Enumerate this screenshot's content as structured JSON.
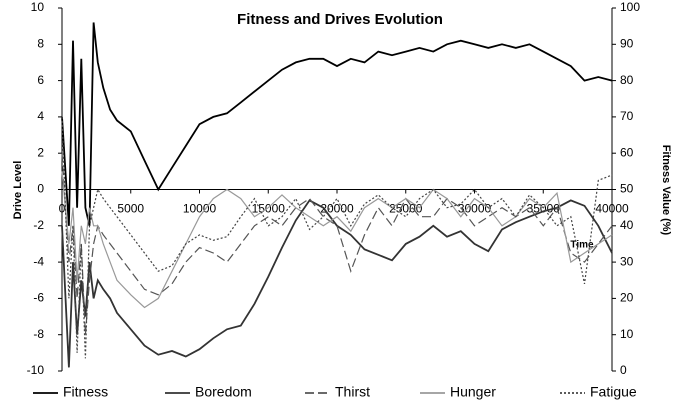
{
  "chart_data": {
    "type": "line",
    "title": "Fitness and Drives Evolution",
    "y_label": "Drive Level",
    "y2_label": "Fitness Value (%)",
    "annotation": "Time",
    "x": [
      0,
      500,
      800,
      1100,
      1400,
      1700,
      2000,
      2300,
      2600,
      3000,
      3500,
      4000,
      5000,
      6000,
      7000,
      8000,
      9000,
      10000,
      11000,
      12000,
      13000,
      14000,
      15000,
      16000,
      17000,
      18000,
      19000,
      20000,
      21000,
      22000,
      23000,
      24000,
      25000,
      26000,
      27000,
      28000,
      29000,
      30000,
      31000,
      32000,
      33000,
      34000,
      35000,
      36000,
      37000,
      38000,
      39000,
      40000
    ],
    "xlim": [
      0,
      40000
    ],
    "xticks": [
      0,
      5000,
      10000,
      15000,
      20000,
      25000,
      30000,
      35000,
      40000
    ],
    "ylim": [
      -10,
      10
    ],
    "yticks": [
      -10,
      -8,
      -6,
      -4,
      -2,
      0,
      2,
      4,
      6,
      8,
      10
    ],
    "y2lim": [
      0,
      100
    ],
    "y2ticks": [
      0,
      10,
      20,
      30,
      40,
      50,
      60,
      70,
      80,
      90,
      100
    ],
    "series": [
      {
        "name": "Fitness",
        "color": "#000000",
        "style": "solid",
        "axis": "y2",
        "values": [
          70,
          40,
          91,
          45,
          86,
          45,
          40,
          96,
          85,
          78,
          72,
          69,
          66,
          58,
          50,
          56,
          62,
          68,
          70,
          71,
          74,
          77,
          80,
          83,
          85,
          86,
          86,
          84,
          86,
          85,
          88,
          87,
          88,
          89,
          88,
          90,
          91,
          90,
          89,
          90,
          89,
          90,
          88,
          86,
          84,
          80,
          81,
          80
        ]
      },
      {
        "name": "Boredom",
        "color": "#333333",
        "style": "solid",
        "values": [
          -2,
          -9.8,
          -4,
          -8,
          -5,
          -7,
          -4,
          -6,
          -5,
          -5.5,
          -6,
          -6.8,
          -7.7,
          -8.6,
          -9.1,
          -8.9,
          -9.2,
          -8.8,
          -8.2,
          -7.7,
          -7.5,
          -6.3,
          -4.8,
          -3.2,
          -1.7,
          -0.6,
          -1,
          -2,
          -2.5,
          -3.3,
          -3.6,
          -3.9,
          -3,
          -2.6,
          -2,
          -2.6,
          -2.3,
          -3,
          -3.4,
          -2.2,
          -1.8,
          -1.5,
          -1.2,
          -1,
          -0.6,
          -0.9,
          -2,
          -3.5
        ]
      },
      {
        "name": "Thirst",
        "color": "#555555",
        "style": "dashed",
        "values": [
          2,
          -4,
          -2,
          -6,
          -3,
          -8,
          -5,
          -3,
          -2,
          -2.5,
          -3,
          -3.5,
          -4.5,
          -5.5,
          -5.8,
          -5.2,
          -4,
          -3.2,
          -3.5,
          -4,
          -3,
          -2,
          -1.5,
          -2,
          -1,
          -0.5,
          -1.5,
          -2,
          -4.5,
          -2.5,
          -1,
          -2,
          -0.5,
          -1.5,
          -1.5,
          -0.5,
          -1,
          -2,
          -1.5,
          -1,
          -1.5,
          -1,
          -2,
          -1,
          -3.5,
          -4,
          -3,
          -2
        ]
      },
      {
        "name": "Hunger",
        "color": "#999999",
        "style": "solid",
        "values": [
          1,
          -3,
          -1,
          -5,
          -2,
          -3,
          -1,
          -2,
          -2,
          -3,
          -4,
          -5,
          -5.8,
          -6.5,
          -6,
          -4.5,
          -3,
          -1.5,
          -0.5,
          0,
          -0.5,
          -1.5,
          -1,
          -0.3,
          -1,
          -1.5,
          -2,
          -1.5,
          -2.3,
          -1,
          -0.5,
          -1,
          -0.5,
          -1,
          0,
          -0.5,
          -1.5,
          -0.5,
          -1,
          -2,
          -1.5,
          -0.5,
          -1,
          -0.2,
          -4,
          -3.5,
          -3,
          -2.5
        ]
      },
      {
        "name": "Fatigue",
        "color": "#444444",
        "style": "dotted",
        "values": [
          4,
          -6,
          -2,
          -9,
          -3,
          -9.3,
          -2,
          -1,
          0,
          -0.5,
          -1,
          -1.5,
          -2.5,
          -3.5,
          -4.5,
          -4.2,
          -3,
          -2.5,
          -2.8,
          -2.6,
          -1.5,
          -0.5,
          -2,
          -1.5,
          -0.5,
          -2.2,
          -1.5,
          -0.5,
          -2,
          -0.8,
          -0.3,
          -1,
          -1.5,
          -0.5,
          0,
          -1,
          -0.8,
          0,
          -1,
          -0.5,
          -1.5,
          -0.3,
          -1,
          -2,
          -1.5,
          -5.2,
          0.5,
          0.8
        ]
      }
    ]
  }
}
